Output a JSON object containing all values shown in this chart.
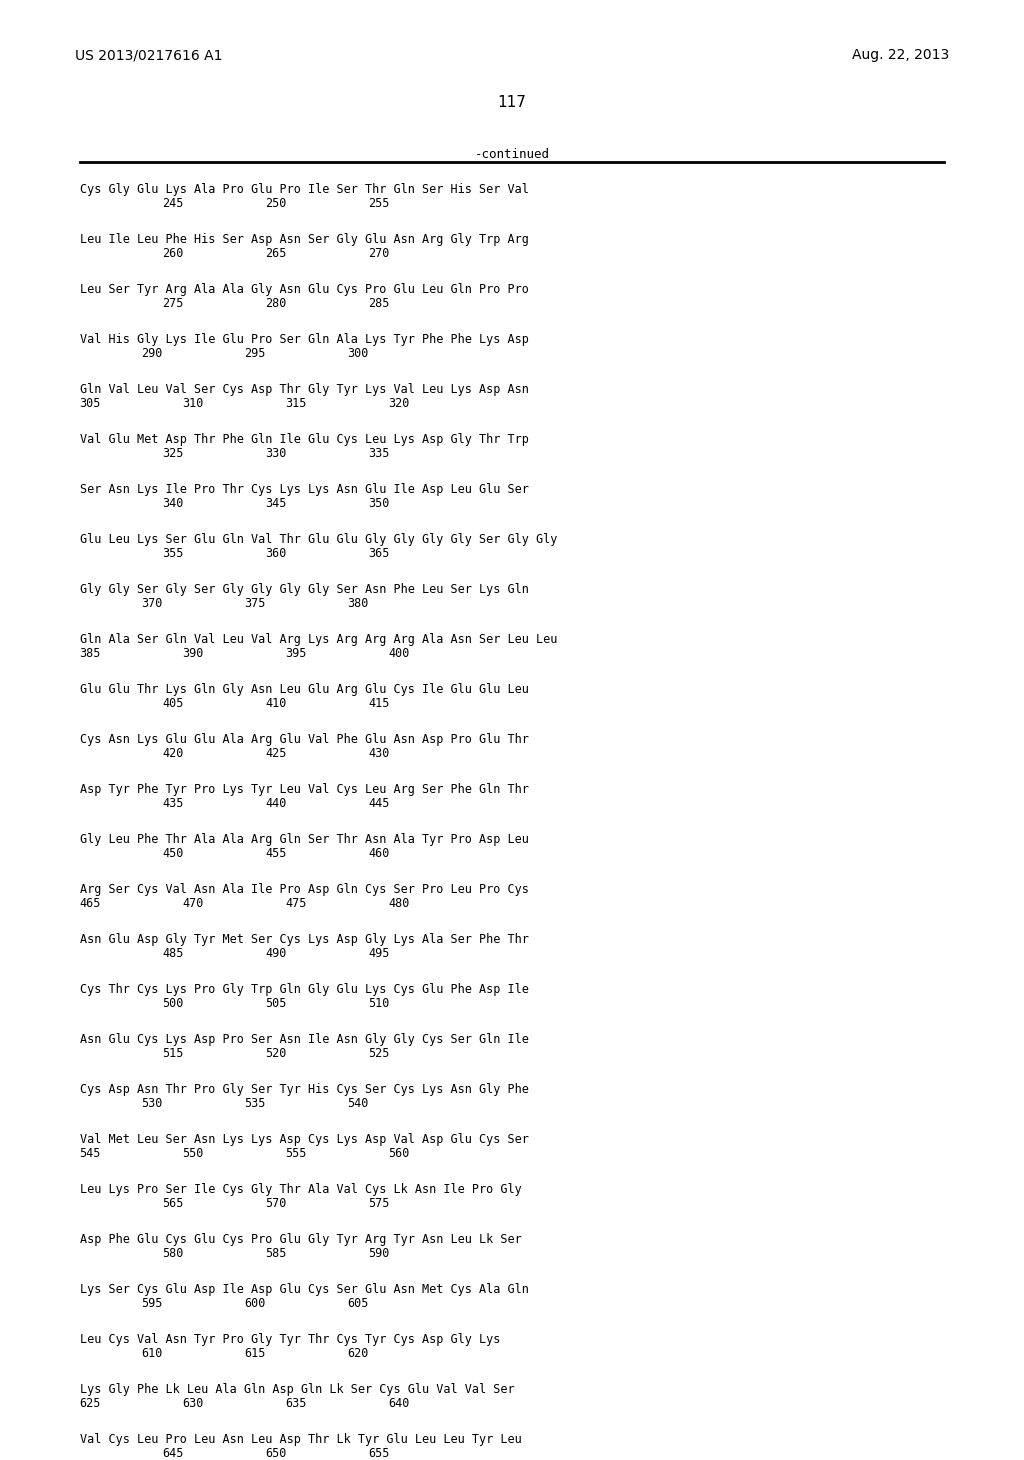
{
  "header_left": "US 2013/0217616 A1",
  "header_right": "Aug. 22, 2013",
  "page_number": "117",
  "continued_label": "-continued",
  "bg_color": "#ffffff",
  "text_color": "#000000",
  "blocks": [
    {
      "seq": "Cys Gly Glu Lys Ala Pro Glu Pro Ile Ser Thr Gln Ser His Ser Val",
      "nums": [
        [
          "245",
          1
        ],
        [
          "250",
          2
        ],
        [
          "255",
          3
        ]
      ],
      "num_indent": "indent2"
    },
    {
      "seq": "Leu Ile Leu Phe His Ser Asp Asn Ser Gly Glu Asn Arg Gly Trp Arg",
      "nums": [
        [
          "260",
          1
        ],
        [
          "265",
          2
        ],
        [
          "270",
          3
        ]
      ],
      "num_indent": "indent2"
    },
    {
      "seq": "Leu Ser Tyr Arg Ala Ala Gly Asn Glu Cys Pro Glu Leu Gln Pro Pro",
      "nums": [
        [
          "275",
          1
        ],
        [
          "280",
          2
        ],
        [
          "285",
          3
        ]
      ],
      "num_indent": "indent2"
    },
    {
      "seq": "Val His Gly Lys Ile Glu Pro Ser Gln Ala Lys Tyr Phe Phe Lys Asp",
      "nums": [
        [
          "290",
          0
        ],
        [
          "295",
          2
        ],
        [
          "300",
          3
        ]
      ],
      "num_indent": "indent1"
    },
    {
      "seq": "Gln Val Leu Val Ser Cys Asp Thr Gly Tyr Lys Val Leu Lys Asp Asn",
      "nums": [
        [
          "305",
          0
        ],
        [
          "310",
          1
        ],
        [
          "315",
          2
        ],
        [
          "320",
          3
        ]
      ],
      "num_indent": "indent0"
    },
    {
      "seq": "Val Glu Met Asp Thr Phe Gln Ile Glu Cys Leu Lys Asp Gly Thr Trp",
      "nums": [
        [
          "325",
          1
        ],
        [
          "330",
          2
        ],
        [
          "335",
          3
        ]
      ],
      "num_indent": "indent2"
    },
    {
      "seq": "Ser Asn Lys Ile Pro Thr Cys Lys Lys Asn Glu Ile Asp Leu Glu Ser",
      "nums": [
        [
          "340",
          1
        ],
        [
          "345",
          2
        ],
        [
          "350",
          3
        ]
      ],
      "num_indent": "indent2"
    },
    {
      "seq": "Glu Leu Lys Ser Glu Gln Val Thr Glu Glu Gly Gly Gly Gly Ser Gly Gly",
      "nums": [
        [
          "355",
          1
        ],
        [
          "360",
          2
        ],
        [
          "365",
          3
        ]
      ],
      "num_indent": "indent2"
    },
    {
      "seq": "Gly Gly Ser Gly Ser Gly Gly Gly Gly Ser Asn Phe Leu Ser Lys Gln",
      "nums": [
        [
          "370",
          0
        ],
        [
          "375",
          1
        ],
        [
          "380",
          2
        ]
      ],
      "num_indent": "indent1"
    },
    {
      "seq": "Gln Ala Ser Gln Val Leu Val Arg Lys Arg Arg Arg Ala Asn Ser Leu Leu",
      "nums": [
        [
          "385",
          0
        ],
        [
          "390",
          1
        ],
        [
          "395",
          2
        ],
        [
          "400",
          3
        ]
      ],
      "num_indent": "indent0"
    },
    {
      "seq": "Glu Glu Thr Lys Gln Gly Asn Leu Glu Arg Glu Cys Ile Glu Glu Leu",
      "nums": [
        [
          "405",
          1
        ],
        [
          "410",
          2
        ],
        [
          "415",
          3
        ]
      ],
      "num_indent": "indent2"
    },
    {
      "seq": "Cys Asn Lys Glu Glu Ala Arg Glu Val Phe Glu Asn Asp Pro Glu Thr",
      "nums": [
        [
          "420",
          1
        ],
        [
          "425",
          2
        ],
        [
          "430",
          3
        ]
      ],
      "num_indent": "indent2"
    },
    {
      "seq": "Asp Tyr Phe Tyr Pro Lys Tyr Leu Val Cys Leu Arg Ser Phe Gln Thr",
      "nums": [
        [
          "435",
          1
        ],
        [
          "440",
          2
        ],
        [
          "445",
          3
        ]
      ],
      "num_indent": "indent2"
    },
    {
      "seq": "Gly Leu Phe Thr Ala Ala Arg Gln Ser Thr Asn Ala Tyr Pro Asp Leu",
      "nums": [
        [
          "450",
          1
        ],
        [
          "455",
          2
        ],
        [
          "460",
          3
        ]
      ],
      "num_indent": "indent2"
    },
    {
      "seq": "Arg Ser Cys Val Asn Ala Ile Pro Asp Gq Cys Ser Pro Leu Pro Cys",
      "nums": [
        [
          "465",
          0
        ],
        [
          "470",
          1
        ],
        [
          "475",
          2
        ],
        [
          "480",
          3
        ]
      ],
      "num_indent": "indent0"
    },
    {
      "seq": "Asn Glu Asp Gly Tyr Met Ser Cys Lys Asp Gly Lys Ala Ser Phe Thr",
      "nums": [
        [
          "485",
          1
        ],
        [
          "490",
          2
        ],
        [
          "495",
          3
        ]
      ],
      "num_indent": "indent2"
    },
    {
      "seq": "Cys Thr Cys Lys Pro Gly Trp Gln Gly Glu Lys Cys Glu Phe Asp Ile",
      "nums": [
        [
          "500",
          1
        ],
        [
          "505",
          2
        ],
        [
          "510",
          3
        ]
      ],
      "num_indent": "indent2"
    },
    {
      "seq": "Asn Glu Cys Lys Asp Pro Ser Asn Ile Asn Gly Gly Cys Ser Gln Ile",
      "nums": [
        [
          "515",
          1
        ],
        [
          "520",
          2
        ],
        [
          "525",
          3
        ]
      ],
      "num_indent": "indent2"
    },
    {
      "seq": "Cys Asp Asn Thr Pro Gly Ser Tyr His Cys Ser Cys Lys Asn Gly Phe",
      "nums": [
        [
          "530",
          0
        ],
        [
          "535",
          1
        ],
        [
          "540",
          2
        ]
      ],
      "num_indent": "indent1"
    },
    {
      "seq": "Val Met Leu Ser Asn Lys Lys Asp Cys Lys Asp Val Asp Glu Cys Ser",
      "nums": [
        [
          "545",
          0
        ],
        [
          "550",
          1
        ],
        [
          "555",
          2
        ],
        [
          "560",
          3
        ]
      ],
      "num_indent": "indent0"
    },
    {
      "seq": "Leu Lys Pro Ser Ile Cys Gly Thr Ala Val Cys Lys Asn Ile Pro Gly",
      "nums": [
        [
          "565",
          1
        ],
        [
          "570",
          2
        ],
        [
          "575",
          3
        ]
      ],
      "num_indent": "indent2"
    },
    {
      "seq": "Asp Phe Glu Cys Glu Cys Pro Glu Gly Tyr Arg Tyr Asn Leu Lys Ser",
      "nums": [
        [
          "580",
          1
        ],
        [
          "585",
          2
        ],
        [
          "590",
          3
        ]
      ],
      "num_indent": "indent2"
    },
    {
      "seq": "Lys Ser Cys Glu Asp Ile Asp Glu Cys Ser Glu Asn Met Cys Ala Gln",
      "nums": [
        [
          "595",
          0
        ],
        [
          "600",
          1
        ],
        [
          "605",
          2
        ]
      ],
      "num_indent": "indent1"
    },
    {
      "seq": "Leu Cys Val Asn Tyr Pro Gly Tyr Thr Cys Tyr Cys Asp Gly Lys",
      "nums": [
        [
          "610",
          0
        ],
        [
          "615",
          1
        ],
        [
          "620",
          2
        ]
      ],
      "num_indent": "indent1"
    },
    {
      "seq": "Lys Gly Phe Lys Leu Ala Gln Asp Gln Lys Ser Cys Glu Val Val Ser",
      "nums": [
        [
          "625",
          0
        ],
        [
          "630",
          1
        ],
        [
          "635",
          2
        ],
        [
          "640",
          3
        ]
      ],
      "num_indent": "indent0"
    },
    {
      "seq": "Val Cys Leu Pro Leu Asn Leu Asp Thr Lk Tyr Glu Leu Leu Tyr Leu",
      "nums": [
        [
          "645",
          1
        ],
        [
          "650",
          2
        ],
        [
          "655",
          3
        ]
      ],
      "num_indent": "indent2"
    }
  ]
}
